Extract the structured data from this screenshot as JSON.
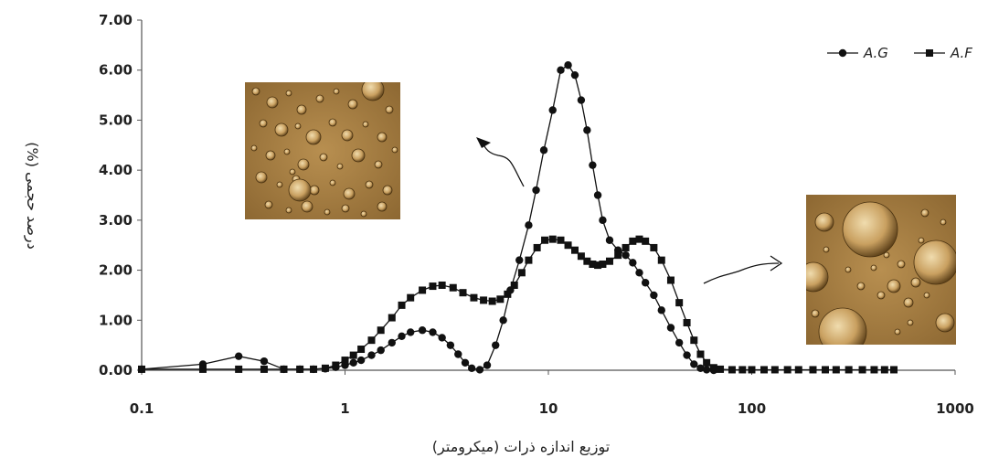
{
  "chart_data": {
    "type": "line",
    "xscale": "log",
    "xlim": [
      0.1,
      1000
    ],
    "ylim": [
      0,
      7
    ],
    "xlabel": "توزیع اندازه ذرات (میکرومتر)",
    "ylabel": "درصد حجمی (%)",
    "x_ticks": [
      "0.1",
      "1",
      "10",
      "100",
      "1000"
    ],
    "y_ticks": [
      "0.00",
      "1.00",
      "2.00",
      "3.00",
      "4.00",
      "5.00",
      "6.00",
      "7.00"
    ],
    "grid": false,
    "legend_position": "top-right",
    "series": [
      {
        "name": "A.G",
        "marker": "circle",
        "color": "#111111",
        "points": [
          [
            0.1,
            0.02
          ],
          [
            0.2,
            0.12
          ],
          [
            0.3,
            0.28
          ],
          [
            0.4,
            0.18
          ],
          [
            0.5,
            0.02
          ],
          [
            0.6,
            0.02
          ],
          [
            0.7,
            0.02
          ],
          [
            0.8,
            0.03
          ],
          [
            0.9,
            0.06
          ],
          [
            1.0,
            0.1
          ],
          [
            1.1,
            0.15
          ],
          [
            1.2,
            0.2
          ],
          [
            1.35,
            0.3
          ],
          [
            1.5,
            0.4
          ],
          [
            1.7,
            0.55
          ],
          [
            1.9,
            0.68
          ],
          [
            2.1,
            0.76
          ],
          [
            2.4,
            0.8
          ],
          [
            2.7,
            0.76
          ],
          [
            3.0,
            0.65
          ],
          [
            3.3,
            0.5
          ],
          [
            3.6,
            0.32
          ],
          [
            3.9,
            0.15
          ],
          [
            4.2,
            0.04
          ],
          [
            4.6,
            0.01
          ],
          [
            5.0,
            0.1
          ],
          [
            5.5,
            0.5
          ],
          [
            6.0,
            1.0
          ],
          [
            6.5,
            1.6
          ],
          [
            7.2,
            2.2
          ],
          [
            8.0,
            2.9
          ],
          [
            8.7,
            3.6
          ],
          [
            9.5,
            4.4
          ],
          [
            10.5,
            5.2
          ],
          [
            11.5,
            6.0
          ],
          [
            12.5,
            6.1
          ],
          [
            13.5,
            5.9
          ],
          [
            14.5,
            5.4
          ],
          [
            15.5,
            4.8
          ],
          [
            16.5,
            4.1
          ],
          [
            17.5,
            3.5
          ],
          [
            18.5,
            3.0
          ],
          [
            20.0,
            2.6
          ],
          [
            22.0,
            2.4
          ],
          [
            24.0,
            2.3
          ],
          [
            26.0,
            2.15
          ],
          [
            28.0,
            1.95
          ],
          [
            30.0,
            1.75
          ],
          [
            33.0,
            1.5
          ],
          [
            36.0,
            1.2
          ],
          [
            40.0,
            0.85
          ],
          [
            44.0,
            0.55
          ],
          [
            48.0,
            0.3
          ],
          [
            52.0,
            0.12
          ],
          [
            56.0,
            0.04
          ],
          [
            60.0,
            0.01
          ],
          [
            65.0,
            0.0
          ]
        ]
      },
      {
        "name": "A.F",
        "marker": "square",
        "color": "#111111",
        "points": [
          [
            0.1,
            0.02
          ],
          [
            0.2,
            0.02
          ],
          [
            0.3,
            0.02
          ],
          [
            0.4,
            0.02
          ],
          [
            0.5,
            0.02
          ],
          [
            0.6,
            0.02
          ],
          [
            0.7,
            0.02
          ],
          [
            0.8,
            0.04
          ],
          [
            0.9,
            0.1
          ],
          [
            1.0,
            0.2
          ],
          [
            1.1,
            0.3
          ],
          [
            1.2,
            0.42
          ],
          [
            1.35,
            0.6
          ],
          [
            1.5,
            0.8
          ],
          [
            1.7,
            1.05
          ],
          [
            1.9,
            1.3
          ],
          [
            2.1,
            1.45
          ],
          [
            2.4,
            1.6
          ],
          [
            2.7,
            1.68
          ],
          [
            3.0,
            1.7
          ],
          [
            3.4,
            1.65
          ],
          [
            3.8,
            1.55
          ],
          [
            4.3,
            1.45
          ],
          [
            4.8,
            1.4
          ],
          [
            5.3,
            1.38
          ],
          [
            5.8,
            1.42
          ],
          [
            6.3,
            1.52
          ],
          [
            6.8,
            1.7
          ],
          [
            7.4,
            1.95
          ],
          [
            8.0,
            2.2
          ],
          [
            8.8,
            2.45
          ],
          [
            9.6,
            2.6
          ],
          [
            10.5,
            2.62
          ],
          [
            11.5,
            2.6
          ],
          [
            12.5,
            2.5
          ],
          [
            13.5,
            2.4
          ],
          [
            14.5,
            2.28
          ],
          [
            15.5,
            2.18
          ],
          [
            16.5,
            2.12
          ],
          [
            17.5,
            2.1
          ],
          [
            18.5,
            2.12
          ],
          [
            20.0,
            2.18
          ],
          [
            22.0,
            2.3
          ],
          [
            24.0,
            2.45
          ],
          [
            26.0,
            2.58
          ],
          [
            28.0,
            2.62
          ],
          [
            30.0,
            2.58
          ],
          [
            33.0,
            2.45
          ],
          [
            36.0,
            2.2
          ],
          [
            40.0,
            1.8
          ],
          [
            44.0,
            1.35
          ],
          [
            48.0,
            0.95
          ],
          [
            52.0,
            0.6
          ],
          [
            56.0,
            0.32
          ],
          [
            60.0,
            0.15
          ],
          [
            65.0,
            0.05
          ],
          [
            70.0,
            0.02
          ],
          [
            80.0,
            0.01
          ],
          [
            90.0,
            0.01
          ],
          [
            100.0,
            0.01
          ],
          [
            115.0,
            0.01
          ],
          [
            130.0,
            0.01
          ],
          [
            150.0,
            0.01
          ],
          [
            170.0,
            0.01
          ],
          [
            200.0,
            0.01
          ],
          [
            230.0,
            0.01
          ],
          [
            260.0,
            0.01
          ],
          [
            300.0,
            0.01
          ],
          [
            350.0,
            0.01
          ],
          [
            400.0,
            0.01
          ],
          [
            450.0,
            0.01
          ],
          [
            500.0,
            0.01
          ]
        ]
      }
    ],
    "annotations": [
      {
        "kind": "micrograph",
        "label": "A.G droplets (smaller)",
        "color": "#b08a4a"
      },
      {
        "kind": "micrograph",
        "label": "A.F droplets (larger)",
        "color": "#b08a4a"
      }
    ]
  }
}
